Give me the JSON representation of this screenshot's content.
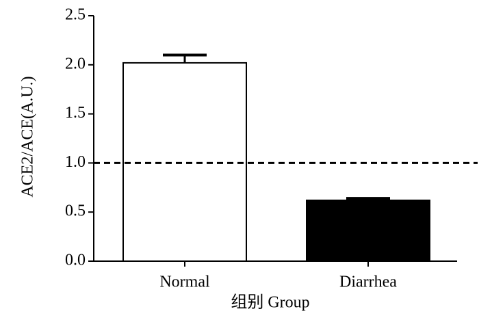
{
  "chart_data": {
    "type": "bar",
    "x_label": "组别  Group",
    "y_label": "ACE2/ACE(A.U.)",
    "categories": [
      "Normal",
      "Diarrhea"
    ],
    "values": [
      2.02,
      0.62
    ],
    "errors": [
      0.08,
      0.02
    ],
    "colors": [
      "#ffffff",
      "#000000"
    ],
    "ylim": [
      0,
      2.5
    ],
    "yticks": [
      {
        "value": 0,
        "label": "0.0"
      },
      0.5,
      {
        "value": 1,
        "label": "1.0"
      },
      1.5,
      {
        "value": 2,
        "label": "2.0"
      },
      2.5
    ],
    "reference_line": 1,
    "grid": false
  }
}
